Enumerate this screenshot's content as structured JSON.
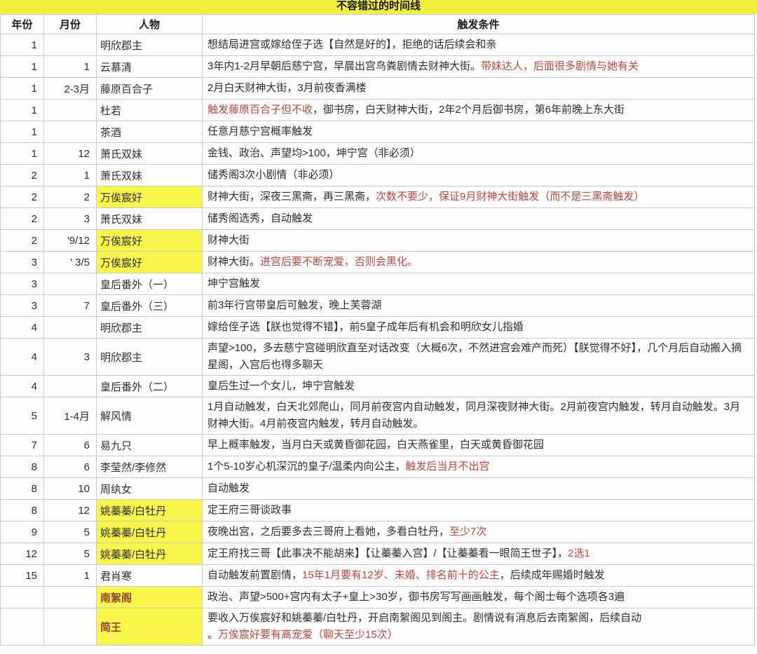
{
  "title": "不容错过的时间线",
  "columns": [
    "年份",
    "月份",
    "人物",
    "触发条件"
  ],
  "colors": {
    "title_yellow": "#f2ee3d",
    "highlight_yellow": "#f9f64b",
    "red_text": "#c4473d",
    "person_dark_red": "#96432f",
    "grid_line": "#c9c9c9",
    "text": "#2f2f2f"
  },
  "rows": [
    {
      "year": "1",
      "month": "",
      "person": "明欣郡主",
      "person_yellow": false,
      "person_dark_red": false,
      "condition": [
        {
          "t": "想结局进宫或嫁给侄子选【自然是好的】，拒绝的话后续会和亲",
          "red": false
        }
      ]
    },
    {
      "year": "1",
      "month": "1",
      "person": "云慕清",
      "person_yellow": false,
      "person_dark_red": false,
      "condition": [
        {
          "t": "3年内1-2月早朝后慈宁宫，早晨出宫鸟粪剧情去财神大街。",
          "red": false
        },
        {
          "t": "带妹达人，后面很多剧情与她有关",
          "red": true
        }
      ]
    },
    {
      "year": "1",
      "month": "2-3月",
      "person": "藤原百合子",
      "person_yellow": false,
      "person_dark_red": false,
      "condition": [
        {
          "t": "2月白天财神大街，3月前夜香满楼",
          "red": false
        }
      ]
    },
    {
      "year": "1",
      "month": "",
      "person": "杜若",
      "person_yellow": false,
      "person_dark_red": false,
      "condition": [
        {
          "t": "触发藤原百合子但不收",
          "red": true
        },
        {
          "t": "，御书房，白天财神大街，2年2个月后御书房，第6年前晚上东大街",
          "red": false
        }
      ]
    },
    {
      "year": "1",
      "month": "",
      "person": "茶酒",
      "person_yellow": false,
      "person_dark_red": false,
      "condition": [
        {
          "t": "任意月慈宁宫概率触发",
          "red": false
        }
      ]
    },
    {
      "year": "1",
      "month": "12",
      "person": "萧氏双妹",
      "person_yellow": false,
      "person_dark_red": false,
      "condition": [
        {
          "t": "金钱、政治、声望均>100，坤宁宫（非必须）",
          "red": false
        }
      ]
    },
    {
      "year": "2",
      "month": "1",
      "person": "萧氏双妹",
      "person_yellow": false,
      "person_dark_red": false,
      "condition": [
        {
          "t": "储秀阁3次小剧情（非必须）",
          "red": false
        }
      ]
    },
    {
      "year": "2",
      "month": "2",
      "person": "万俟宸好",
      "person_yellow": true,
      "person_dark_red": false,
      "condition": [
        {
          "t": "财神大街，深夜三黑斋，再三黑斋，",
          "red": false
        },
        {
          "t": "次数不要少，保证9月财神大街触发（而不是三黑斋触发）",
          "red": true
        }
      ]
    },
    {
      "year": "2",
      "month": "3",
      "person": "萧氏双妹",
      "person_yellow": false,
      "person_dark_red": false,
      "condition": [
        {
          "t": "储秀阁选秀，自动触发",
          "red": false
        }
      ]
    },
    {
      "year": "2",
      "month": "'9/12",
      "person": "万俟宸好",
      "person_yellow": true,
      "person_dark_red": false,
      "condition": [
        {
          "t": "财神大街",
          "red": false
        }
      ]
    },
    {
      "year": "3",
      "month": "'  3/5",
      "person": "万俟宸好",
      "person_yellow": true,
      "person_dark_red": false,
      "condition": [
        {
          "t": "财神大街。",
          "red": false
        },
        {
          "t": "进宫后要不断宠爱，否则会黑化。",
          "red": true
        }
      ]
    },
    {
      "year": "3",
      "month": "",
      "person": "皇后番外（一）",
      "person_yellow": false,
      "person_dark_red": false,
      "condition": [
        {
          "t": "坤宁宫触发",
          "red": false
        }
      ]
    },
    {
      "year": "3",
      "month": "7",
      "person": "皇后番外（三）",
      "person_yellow": false,
      "person_dark_red": false,
      "condition": [
        {
          "t": "前3年行宫带皇后可触发，晚上芙蓉湖",
          "red": false
        }
      ]
    },
    {
      "year": "4",
      "month": "",
      "person": "明欣郡主",
      "person_yellow": false,
      "person_dark_red": false,
      "condition": [
        {
          "t": "嫁给侄子选【朕也觉得不错】，前5皇子成年后有机会和明欣女儿指婚",
          "red": false
        }
      ]
    },
    {
      "year": "4",
      "month": "3",
      "person": "明欣郡主",
      "person_yellow": false,
      "person_dark_red": false,
      "condition": [
        {
          "t": "声望>100，多去慈宁宫碰明欣直至对话改变（大概6次，不然进宫会难产而死）【朕觉得不好】，几个月后自动搬入摘星阁，入宫后也得多聊天",
          "red": false
        }
      ]
    },
    {
      "year": "4",
      "month": "",
      "person": "皇后番外（二）",
      "person_yellow": false,
      "person_dark_red": false,
      "condition": [
        {
          "t": "皇后生过一个女儿，坤宁宫触发",
          "red": false
        }
      ]
    },
    {
      "year": "5",
      "month": "1-4月",
      "person": "解风情",
      "person_yellow": false,
      "person_dark_red": false,
      "condition": [
        {
          "t": "1月自动触发，白天北郊爬山，同月前夜宫内自动触发，同月深夜财神大街。2月前夜宫内触发，转月自动触发。3月财神大街。4月前夜宫内触发，转月自动触发。",
          "red": false
        }
      ]
    },
    {
      "year": "7",
      "month": "6",
      "person": "易九只",
      "person_yellow": false,
      "person_dark_red": false,
      "condition": [
        {
          "t": "早上概率触发，当月白天或黄昏御花园，白天燕雀里，白天或黄昏御花园",
          "red": false
        }
      ]
    },
    {
      "year": "8",
      "month": "6",
      "person": "李莹然/李修然",
      "person_yellow": false,
      "person_dark_red": false,
      "condition": [
        {
          "t": "1个5-10岁心机深沉的皇子/温柔内向公主，",
          "red": false
        },
        {
          "t": "触发后当月不出宫",
          "red": true
        }
      ]
    },
    {
      "year": "8",
      "month": "10",
      "person": "周纨女",
      "person_yellow": false,
      "person_dark_red": false,
      "condition": [
        {
          "t": "自动触发",
          "red": false
        }
      ]
    },
    {
      "year": "8",
      "month": "12",
      "person": "姚蓁蓁/白牡丹",
      "person_yellow": true,
      "person_dark_red": false,
      "condition": [
        {
          "t": "定王府三哥谈政事",
          "red": false
        }
      ]
    },
    {
      "year": "9",
      "month": "5",
      "person": "姚蓁蓁/白牡丹",
      "person_yellow": true,
      "person_dark_red": false,
      "condition": [
        {
          "t": "夜晚出宫，之后要多去三哥府上看她，多看白牡丹，",
          "red": false
        },
        {
          "t": "至少7次",
          "red": true
        }
      ]
    },
    {
      "year": "12",
      "month": "5",
      "person": "姚蓁蓁/白牡丹",
      "person_yellow": true,
      "person_dark_red": false,
      "condition": [
        {
          "t": "定王府找三哥【此事决不能胡来】【让蓁蓁入宫】/【让蓁蓁看一眼简王世子】，",
          "red": false
        },
        {
          "t": "2选1",
          "red": true
        }
      ]
    },
    {
      "year": "15",
      "month": "1",
      "person": "君肖寒",
      "person_yellow": false,
      "person_dark_red": false,
      "condition": [
        {
          "t": "自动触发前置剧情，",
          "red": false
        },
        {
          "t": "15年1月要有12岁、未婚、排名前十的公主",
          "red": true
        },
        {
          "t": "，后续成年赐婚时触发",
          "red": false
        }
      ]
    },
    {
      "year": "",
      "month": "",
      "person": "南絮阁",
      "person_yellow": true,
      "person_dark_red": true,
      "condition": [
        {
          "t": "政治、声望>500+宫内有太子+皇上>30岁，御书房写写画画触发，每个阁士每个选项各3遍",
          "red": false
        }
      ]
    },
    {
      "year": "",
      "month": "",
      "person": "简王",
      "person_yellow": true,
      "person_dark_red": true,
      "condition": [
        {
          "t": "要收入万俟宸好和姚蓁蓁/白牡丹，开启南絮阁见到阁主。剧情说有消息后去南絮阁，后续自动",
          "red": false
        },
        {
          "br": true
        },
        {
          "t": "。",
          "red": false
        },
        {
          "t": "万俟宸好要有高宠爱（聊天至少15次）",
          "red": true
        }
      ]
    }
  ]
}
